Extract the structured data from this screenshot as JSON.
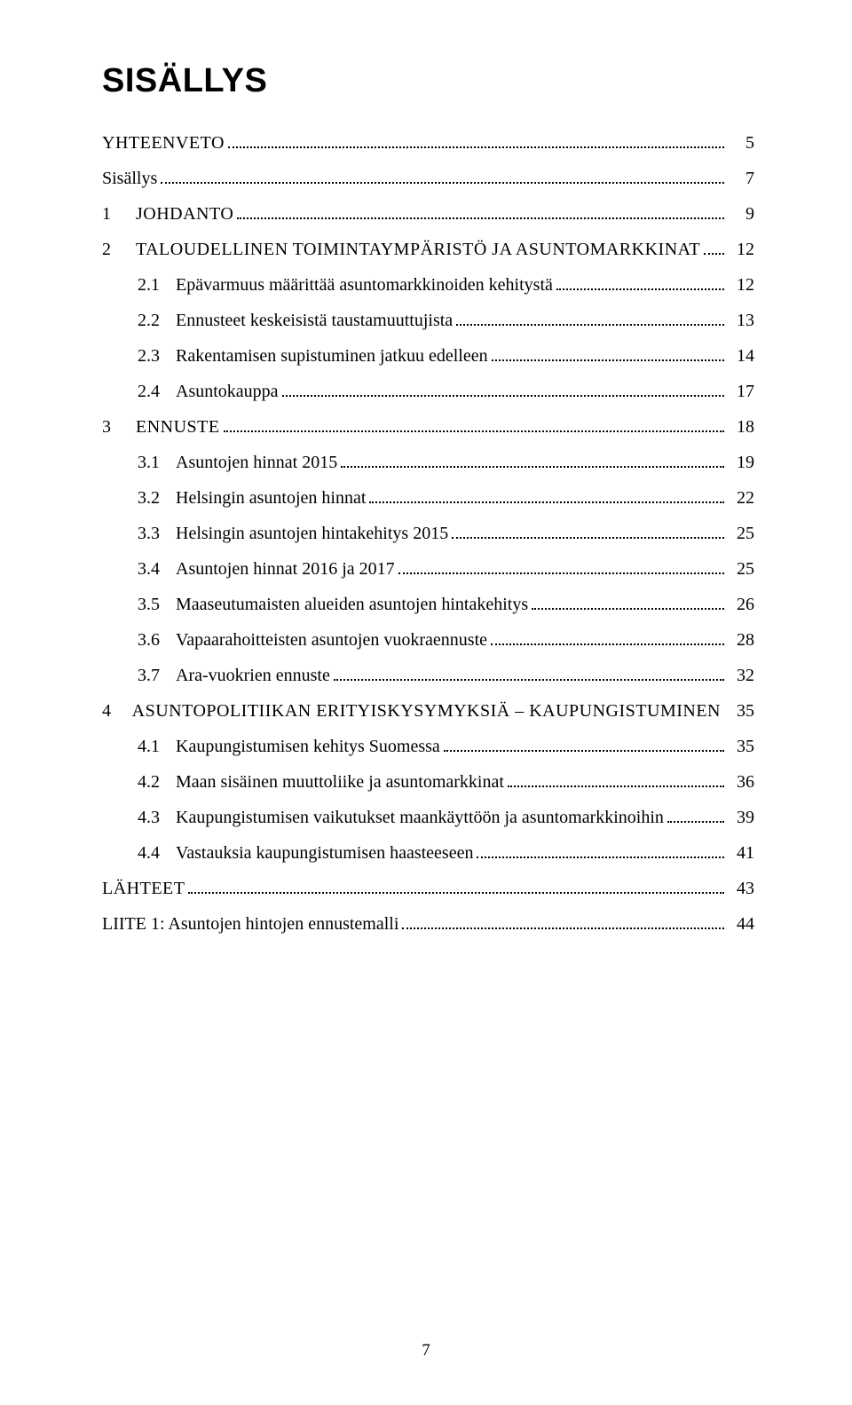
{
  "title": "SISÄLLYS",
  "page_number": "7",
  "colors": {
    "text": "#000000",
    "background": "#ffffff",
    "dot_leader": "#000000"
  },
  "typography": {
    "title_font": "sans-serif",
    "title_size_pt": 28,
    "title_weight": "bold",
    "body_font": "serif",
    "body_size_pt": 15
  },
  "entries": [
    {
      "level": 0,
      "num": "",
      "gap": 0,
      "label": "YHTEENVETO",
      "caps": true,
      "page": "5"
    },
    {
      "level": 0,
      "num": "",
      "gap": 0,
      "label": "Sisällys",
      "caps": false,
      "page": "7"
    },
    {
      "level": 0,
      "num": "1",
      "gap": 28,
      "label": "JOHDANTO",
      "caps": true,
      "page": "9"
    },
    {
      "level": 0,
      "num": "2",
      "gap": 28,
      "label": "TALOUDELLINEN TOIMINTAYMPÄRISTÖ JA ASUNTOMARKKINAT",
      "caps": true,
      "page": "12"
    },
    {
      "level": 1,
      "num": "2.1",
      "gap": 18,
      "label": "Epävarmuus määrittää asuntomarkkinoiden kehitystä",
      "caps": false,
      "page": "12"
    },
    {
      "level": 1,
      "num": "2.2",
      "gap": 18,
      "label": "Ennusteet keskeisistä taustamuuttujista",
      "caps": false,
      "page": "13"
    },
    {
      "level": 1,
      "num": "2.3",
      "gap": 18,
      "label": "Rakentamisen supistuminen jatkuu edelleen",
      "caps": false,
      "page": "14"
    },
    {
      "level": 1,
      "num": "2.4",
      "gap": 18,
      "label": "Asuntokauppa",
      "caps": false,
      "page": "17"
    },
    {
      "level": 0,
      "num": "3",
      "gap": 28,
      "label": "ENNUSTE",
      "caps": true,
      "page": "18"
    },
    {
      "level": 1,
      "num": "3.1",
      "gap": 18,
      "label": "Asuntojen hinnat 2015",
      "caps": false,
      "page": "19"
    },
    {
      "level": 1,
      "num": "3.2",
      "gap": 18,
      "label": "Helsingin asuntojen hinnat",
      "caps": false,
      "page": "22"
    },
    {
      "level": 1,
      "num": "3.3",
      "gap": 18,
      "label": "Helsingin asuntojen hintakehitys 2015",
      "caps": false,
      "page": "25"
    },
    {
      "level": 1,
      "num": "3.4",
      "gap": 18,
      "label": "Asuntojen hinnat 2016 ja 2017",
      "caps": false,
      "page": "25"
    },
    {
      "level": 1,
      "num": "3.5",
      "gap": 18,
      "label": "Maaseutumaisten alueiden asuntojen hintakehitys",
      "caps": false,
      "page": "26"
    },
    {
      "level": 1,
      "num": "3.6",
      "gap": 18,
      "label": "Vapaarahoitteisten asuntojen vuokraennuste",
      "caps": false,
      "page": "28"
    },
    {
      "level": 1,
      "num": "3.7",
      "gap": 18,
      "label": "Ara-vuokrien ennuste",
      "caps": false,
      "page": "32"
    },
    {
      "level": 0,
      "num": "4",
      "gap": 28,
      "label": "ASUNTOPOLITIIKAN ERITYISKYSYMYKSIÄ – KAUPUNGISTUMINEN",
      "caps": true,
      "page": "35"
    },
    {
      "level": 1,
      "num": "4.1",
      "gap": 18,
      "label": "Kaupungistumisen kehitys Suomessa",
      "caps": false,
      "page": "35"
    },
    {
      "level": 1,
      "num": "4.2",
      "gap": 18,
      "label": "Maan sisäinen muuttoliike ja asuntomarkkinat",
      "caps": false,
      "page": "36"
    },
    {
      "level": 1,
      "num": "4.3",
      "gap": 18,
      "label": "Kaupungistumisen vaikutukset maankäyttöön ja asuntomarkkinoihin",
      "caps": false,
      "page": "39"
    },
    {
      "level": 1,
      "num": "4.4",
      "gap": 18,
      "label": "Vastauksia kaupungistumisen haasteeseen",
      "caps": false,
      "page": "41"
    },
    {
      "level": 0,
      "num": "",
      "gap": 0,
      "label": "LÄHTEET",
      "caps": true,
      "page": "43"
    },
    {
      "level": 0,
      "num": "",
      "gap": 0,
      "label": "LIITE 1: Asuntojen hintojen ennustemalli",
      "caps": false,
      "page": "44"
    }
  ]
}
